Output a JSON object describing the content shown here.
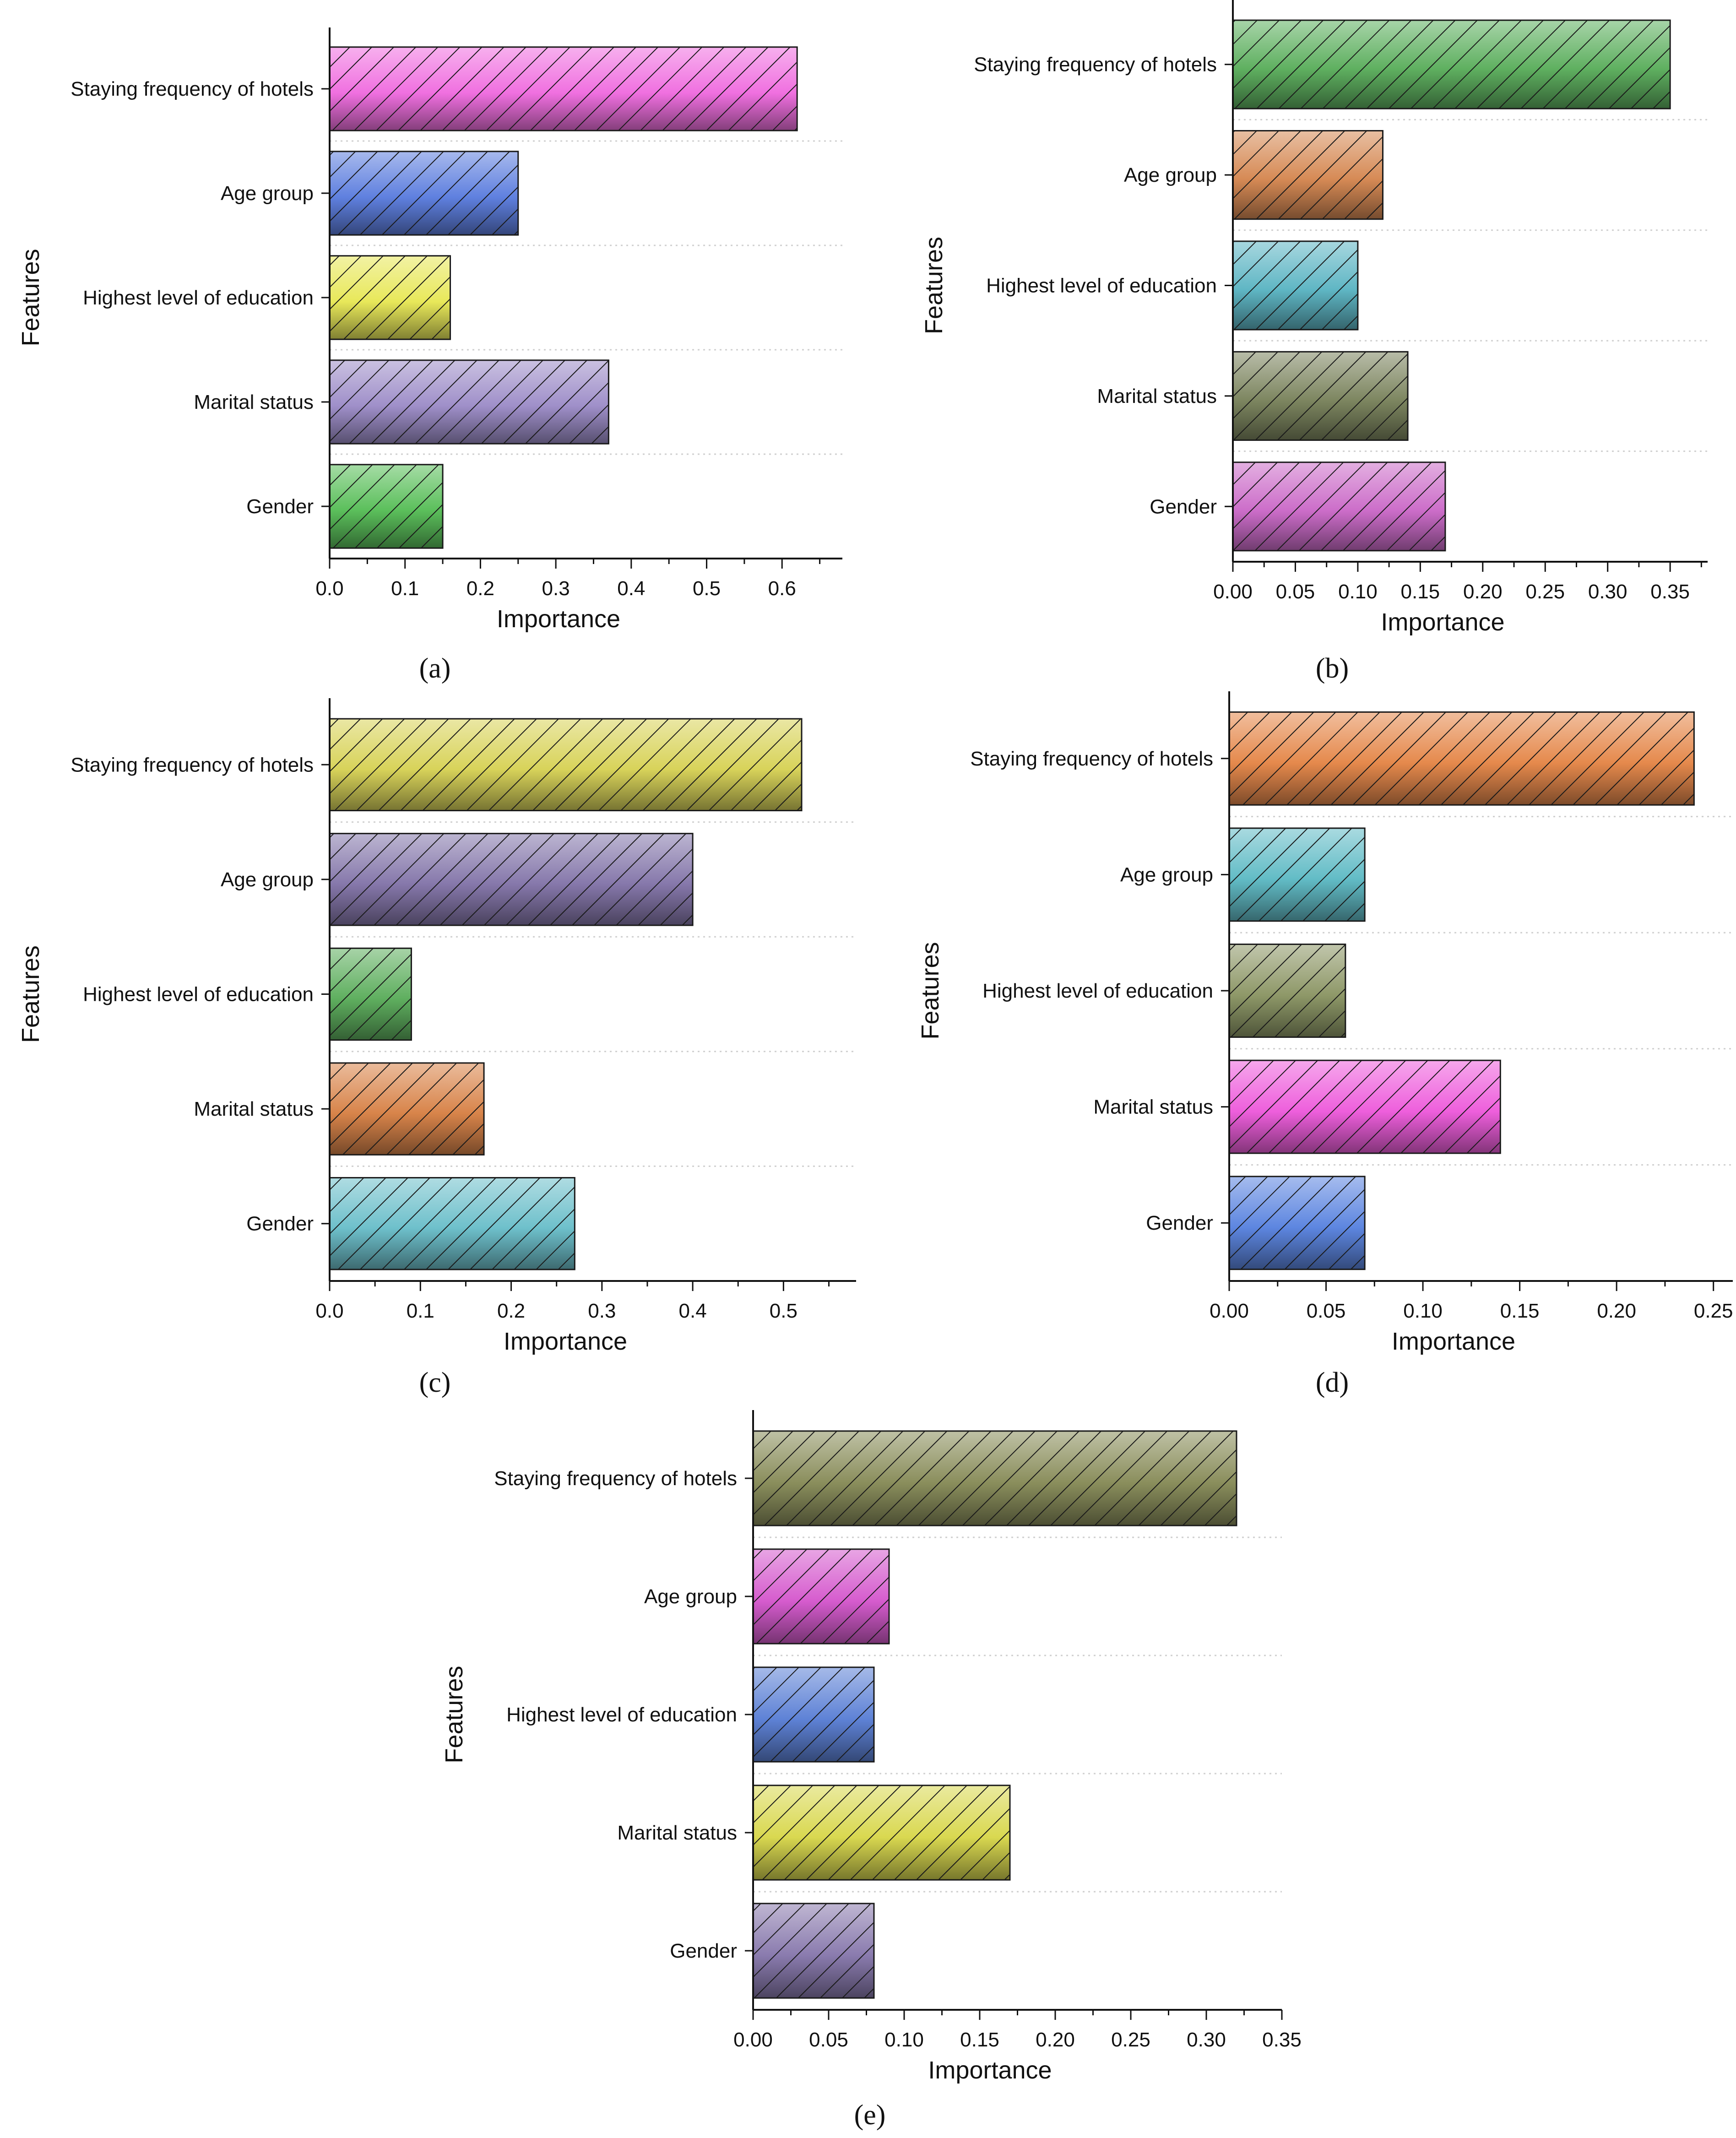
{
  "figure": {
    "panel_labels": [
      "(a)",
      "(b)",
      "(c)",
      "(d)",
      "(e)"
    ]
  },
  "chart_data": [
    {
      "type": "bar",
      "orientation": "horizontal",
      "panel": "(a)",
      "categories": [
        "Staying frequency of hotels",
        "Age group",
        "Highest level of education",
        "Marital status",
        "Gender"
      ],
      "values": [
        0.62,
        0.25,
        0.16,
        0.37,
        0.15
      ],
      "colors": [
        "#f070e0",
        "#5f80df",
        "#e8e85a",
        "#9f8fc9",
        "#5bbf5b"
      ],
      "xlabel": "Importance",
      "ylabel": "Features",
      "xlim": [
        0,
        0.68
      ],
      "xticks": [
        0.0,
        0.1,
        0.2,
        0.3,
        0.4,
        0.5,
        0.6
      ],
      "xtick_labels": [
        "0.0",
        "0.1",
        "0.2",
        "0.3",
        "0.4",
        "0.5",
        "0.6"
      ],
      "grid": "horizontal dotted",
      "hatch": "diagonal"
    },
    {
      "type": "bar",
      "orientation": "horizontal",
      "panel": "(b)",
      "categories": [
        "Staying frequency of hotels",
        "Age group",
        "Highest level of education",
        "Marital status",
        "Gender"
      ],
      "values": [
        0.35,
        0.12,
        0.1,
        0.14,
        0.17
      ],
      "colors": [
        "#5fb060",
        "#d68a55",
        "#5fb6c4",
        "#7d8660",
        "#cc6dc9"
      ],
      "xlabel": "Importance",
      "ylabel": "Features",
      "xlim": [
        0,
        0.38
      ],
      "xticks": [
        0.0,
        0.05,
        0.1,
        0.15,
        0.2,
        0.25,
        0.3,
        0.35
      ],
      "xtick_labels": [
        "0.00",
        "0.05",
        "0.10",
        "0.15",
        "0.20",
        "0.25",
        "0.30",
        "0.35"
      ],
      "grid": "horizontal dotted",
      "hatch": "diagonal"
    },
    {
      "type": "bar",
      "orientation": "horizontal",
      "panel": "(c)",
      "categories": [
        "Staying frequency of hotels",
        "Age group",
        "Highest level of education",
        "Marital status",
        "Gender"
      ],
      "values": [
        0.52,
        0.4,
        0.09,
        0.17,
        0.27
      ],
      "colors": [
        "#d8d35a",
        "#8678ab",
        "#5faf5f",
        "#d8844a",
        "#6ec0cb"
      ],
      "xlabel": "Importance",
      "ylabel": "Features",
      "xlim": [
        0,
        0.58
      ],
      "xticks": [
        0.0,
        0.1,
        0.2,
        0.3,
        0.4,
        0.5
      ],
      "xtick_labels": [
        "0.0",
        "0.1",
        "0.2",
        "0.3",
        "0.4",
        "0.5"
      ],
      "grid": "horizontal dotted",
      "hatch": "diagonal"
    },
    {
      "type": "bar",
      "orientation": "horizontal",
      "panel": "(d)",
      "categories": [
        "Staying frequency of hotels",
        "Age group",
        "Highest level of education",
        "Marital status",
        "Gender"
      ],
      "values": [
        0.24,
        0.07,
        0.06,
        0.14,
        0.07
      ],
      "colors": [
        "#e5894c",
        "#62bcc6",
        "#8e9868",
        "#ee5fdc",
        "#5d86e0"
      ],
      "xlabel": "Importance",
      "ylabel": "Features",
      "xlim": [
        0,
        0.26
      ],
      "xticks": [
        0.0,
        0.05,
        0.1,
        0.15,
        0.2,
        0.25
      ],
      "xtick_labels": [
        "0.00",
        "0.05",
        "0.10",
        "0.15",
        "0.20",
        "0.25"
      ],
      "grid": "horizontal dotted",
      "hatch": "diagonal"
    },
    {
      "type": "bar",
      "orientation": "horizontal",
      "panel": "(e)",
      "categories": [
        "Staying frequency of hotels",
        "Age group",
        "Highest level of education",
        "Marital status",
        "Gender"
      ],
      "values": [
        0.32,
        0.09,
        0.08,
        0.17,
        0.08
      ],
      "colors": [
        "#8a8e5c",
        "#d65cce",
        "#5e82d6",
        "#d9d850",
        "#8a7bae"
      ],
      "xlabel": "Importance",
      "ylabel": "Features",
      "xlim": [
        0,
        0.35
      ],
      "xticks": [
        0.0,
        0.05,
        0.1,
        0.15,
        0.2,
        0.25,
        0.3,
        0.35
      ],
      "xtick_labels": [
        "0.00",
        "0.05",
        "0.10",
        "0.15",
        "0.20",
        "0.25",
        "0.30",
        "0.35"
      ],
      "grid": "horizontal dotted",
      "hatch": "diagonal"
    }
  ]
}
